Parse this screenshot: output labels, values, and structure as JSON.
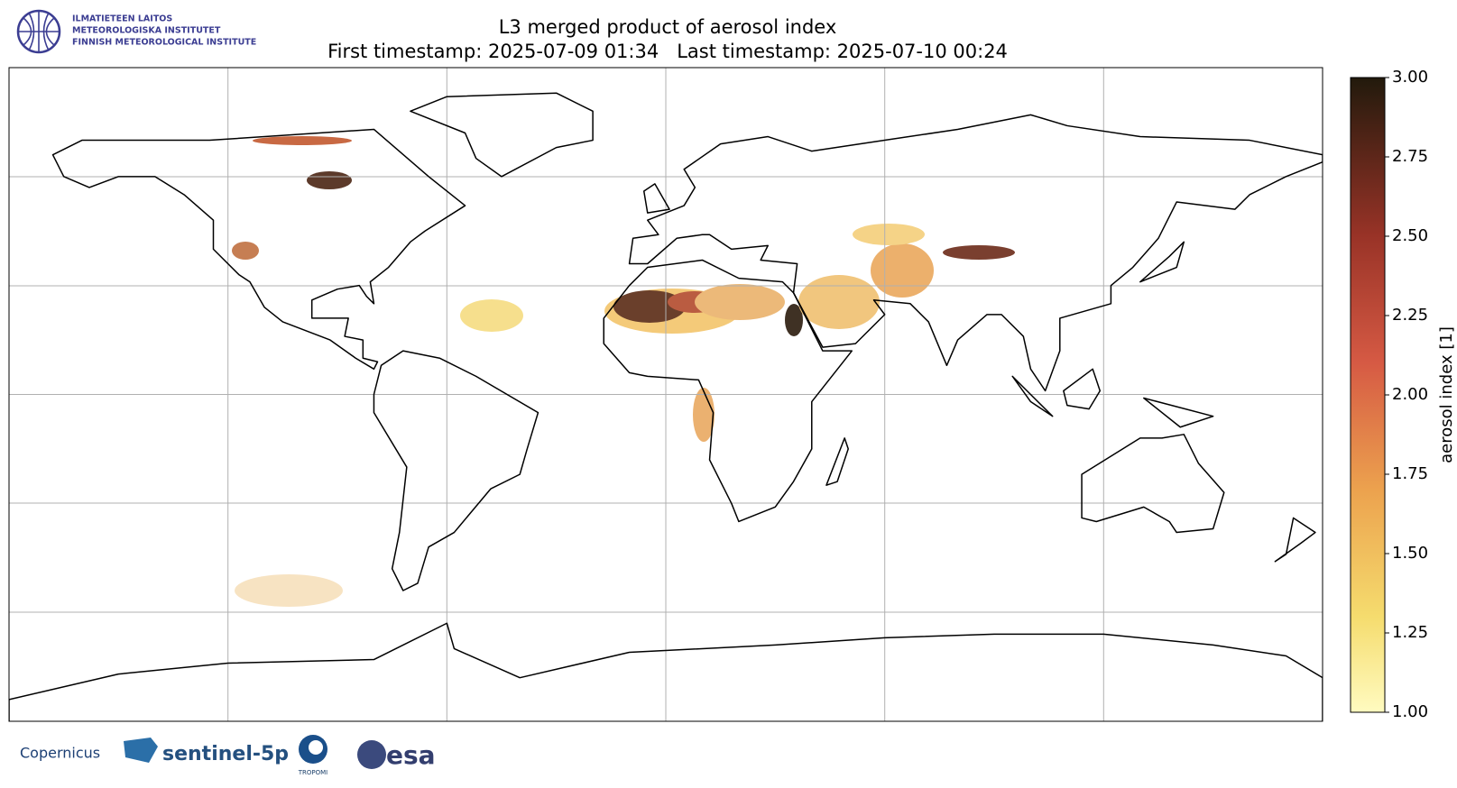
{
  "header": {
    "institute": [
      "ILMATIETEEN LAITOS",
      "METEOROLOGISKA INSTITUTET",
      "FINNISH METEOROLOGICAL INSTITUTE"
    ]
  },
  "map": {
    "title": "L3 merged product of aerosol index",
    "subtitle": "First timestamp: 2025-07-09 01:34   Last timestamp: 2025-07-10 00:24"
  },
  "colorbar": {
    "label": "aerosol index [1]",
    "lim": [
      1,
      3
    ],
    "ticks": [
      {
        "value": 1,
        "label": "1.00"
      },
      {
        "value": 1.25,
        "label": "1.25"
      },
      {
        "value": 1.5,
        "label": "1.50"
      },
      {
        "value": 1.75,
        "label": "1.75"
      },
      {
        "value": 2,
        "label": "2.00"
      },
      {
        "value": 2.25,
        "label": "2.25"
      },
      {
        "value": 2.5,
        "label": "2.50"
      },
      {
        "value": 2.75,
        "label": "2.75"
      },
      {
        "value": 3,
        "label": "3.00"
      }
    ]
  },
  "footer": {
    "copernicus": "Copernicus",
    "sentinel": "sentinel-5p",
    "tropomi": "TROPOMI",
    "esa": "esa"
  }
}
